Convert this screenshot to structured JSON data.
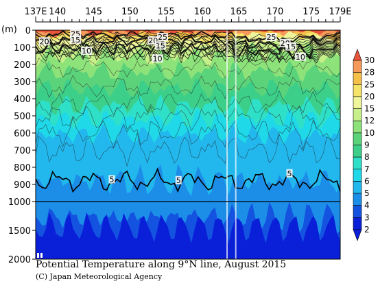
{
  "chart_data": {
    "type": "heatmap",
    "title": "Potential Temperature along 9°N line, August 2015",
    "credit": "(C) Japan Meteorological Agency",
    "ylabel": "(m)",
    "x_ticks": [
      "137E",
      "140",
      "145",
      "150",
      "155",
      "160",
      "165",
      "170",
      "175",
      "179E"
    ],
    "x_tick_values": [
      137,
      140,
      145,
      150,
      155,
      160,
      165,
      170,
      175,
      179
    ],
    "xlim": [
      137,
      179
    ],
    "y_ticks_upper": [
      "0",
      "100",
      "200",
      "300",
      "400",
      "500",
      "600",
      "700",
      "800",
      "900",
      "1000"
    ],
    "y_ticks_lower": [
      "1500",
      "2000"
    ],
    "ylim": [
      0,
      2000
    ],
    "depth_break": 1000,
    "colorbar_levels": [
      "30",
      "28",
      "25",
      "20",
      "15",
      "12",
      "10",
      "9",
      "8",
      "7",
      "6",
      "5",
      "4",
      "3",
      "2"
    ],
    "colorbar_colors": [
      "#e8553a",
      "#f59a5a",
      "#f5c04a",
      "#f5e36a",
      "#eef59a",
      "#c8f08a",
      "#8ee27a",
      "#5bd37a",
      "#3ccf8a",
      "#2fe0c8",
      "#1fd8e8",
      "#22b8ee",
      "#1c8ee8",
      "#1452e0",
      "#0a1fd8"
    ],
    "contour_labels": [
      {
        "text": "25",
        "lon": 142.5,
        "depth": 20
      },
      {
        "text": "20",
        "lon": 138.2,
        "depth": 65
      },
      {
        "text": "15",
        "lon": 142.5,
        "depth": 55
      },
      {
        "text": "10",
        "lon": 144.0,
        "depth": 120
      },
      {
        "text": "25",
        "lon": 154.5,
        "depth": 40
      },
      {
        "text": "20",
        "lon": 153.2,
        "depth": 60
      },
      {
        "text": "15",
        "lon": 154.2,
        "depth": 90
      },
      {
        "text": "10",
        "lon": 153.8,
        "depth": 165
      },
      {
        "text": "25",
        "lon": 169.5,
        "depth": 40
      },
      {
        "text": "20",
        "lon": 171.4,
        "depth": 75
      },
      {
        "text": "15",
        "lon": 172.2,
        "depth": 95
      },
      {
        "text": "10",
        "lon": 173.5,
        "depth": 155
      },
      {
        "text": "5",
        "lon": 147.5,
        "depth": 870
      },
      {
        "text": "5",
        "lon": 156.7,
        "depth": 875
      },
      {
        "text": "5",
        "lon": 172.0,
        "depth": 835
      }
    ]
  }
}
